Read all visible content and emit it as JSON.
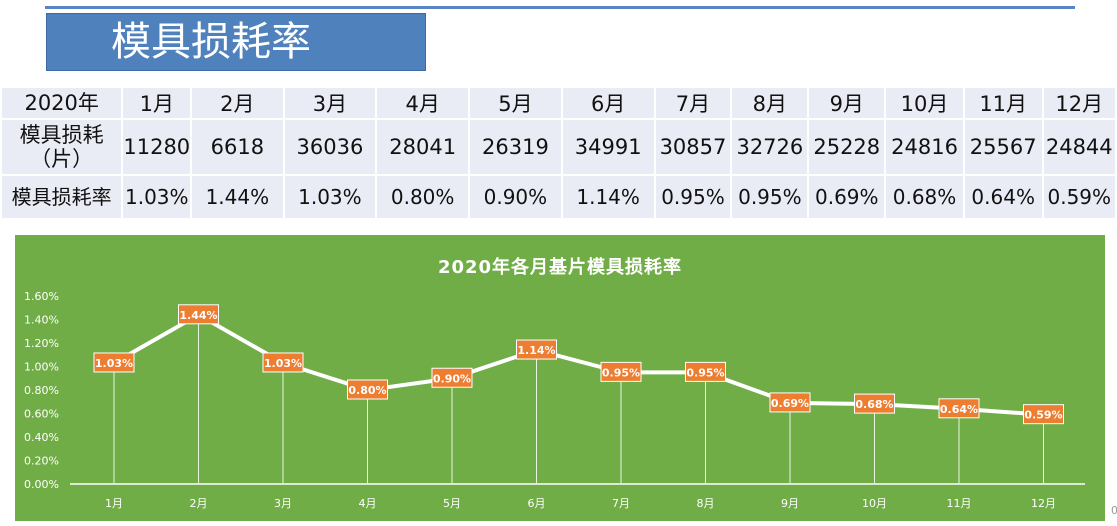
{
  "slide_title": "模具损耗率",
  "table": {
    "row_headers": [
      "2020年",
      "模具损耗\n（片）",
      "模具损耗率"
    ],
    "months": [
      "1月",
      "2月",
      "3月",
      "4月",
      "5月",
      "6月",
      "7月",
      "8月",
      "9月",
      "10月",
      "11月",
      "12月"
    ],
    "quantities": [
      "11280",
      "6618",
      "36036",
      "28041",
      "26319",
      "34991",
      "30857",
      "32726",
      "25228",
      "24816",
      "25567",
      "24844"
    ],
    "rates": [
      "1.03%",
      "1.44%",
      "1.03%",
      "0.80%",
      "0.90%",
      "1.14%",
      "0.95%",
      "0.95%",
      "0.69%",
      "0.68%",
      "0.64%",
      "0.59%"
    ]
  },
  "stray_char": "0",
  "colors": {
    "title_bg": "#4f81bd",
    "table_cell_bg": "#e9ecf4",
    "chart_bg": "#70ad47",
    "line": "#ffffff",
    "label_bg": "#ed7d31"
  },
  "chart_data": {
    "type": "line",
    "title": "2020年各月基片模具损耗率",
    "categories": [
      "1月",
      "2月",
      "3月",
      "4月",
      "5月",
      "6月",
      "7月",
      "8月",
      "9月",
      "10月",
      "11月",
      "12月"
    ],
    "values": [
      1.03,
      1.44,
      1.03,
      0.8,
      0.9,
      1.14,
      0.95,
      0.95,
      0.69,
      0.68,
      0.64,
      0.59
    ],
    "data_labels": [
      "1.03%",
      "1.44%",
      "1.03%",
      "0.80%",
      "0.90%",
      "1.14%",
      "0.95%",
      "0.95%",
      "0.69%",
      "0.68%",
      "0.64%",
      "0.59%"
    ],
    "ylim": [
      0,
      1.6
    ],
    "yticks": [
      "0.00%",
      "0.20%",
      "0.40%",
      "0.60%",
      "0.80%",
      "1.00%",
      "1.20%",
      "1.40%",
      "1.60%"
    ],
    "xlabel": "",
    "ylabel": "",
    "grid": false,
    "legend": "none",
    "drop_lines": true
  }
}
